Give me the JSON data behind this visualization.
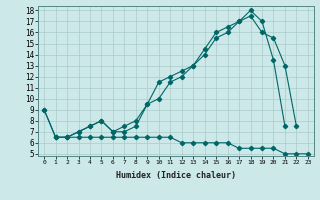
{
  "title": "",
  "xlabel": "Humidex (Indice chaleur)",
  "ylabel": "",
  "bg_color": "#cce8e8",
  "line_color": "#006666",
  "grid_color": "#aacccc",
  "xlim": [
    -0.5,
    23.5
  ],
  "ylim": [
    4.8,
    18.4
  ],
  "xticks": [
    0,
    1,
    2,
    3,
    4,
    5,
    6,
    7,
    8,
    9,
    10,
    11,
    12,
    13,
    14,
    15,
    16,
    17,
    18,
    19,
    20,
    21,
    22,
    23
  ],
  "yticks": [
    5,
    6,
    7,
    8,
    9,
    10,
    11,
    12,
    13,
    14,
    15,
    16,
    17,
    18
  ],
  "line1_x": [
    0,
    1,
    2,
    3,
    4,
    5,
    6,
    7,
    8,
    9,
    10,
    11,
    12,
    13,
    14,
    15,
    16,
    17,
    18,
    19,
    20,
    21
  ],
  "line1_y": [
    9,
    6.5,
    6.5,
    7,
    7.5,
    8,
    7,
    7,
    7.5,
    9.5,
    11.5,
    12,
    12.5,
    13,
    14.5,
    16,
    16.5,
    17,
    18,
    17,
    13.5,
    7.5
  ],
  "line2_x": [
    0,
    1,
    2,
    3,
    4,
    5,
    6,
    7,
    8,
    9,
    10,
    11,
    12,
    13,
    14,
    15,
    16,
    17,
    18,
    19,
    20,
    21,
    22
  ],
  "line2_y": [
    9,
    6.5,
    6.5,
    7,
    7.5,
    8,
    7,
    7.5,
    8,
    9.5,
    10,
    11.5,
    12,
    13,
    14,
    15.5,
    16,
    17,
    17.5,
    16,
    15.5,
    13,
    7.5
  ],
  "line3_x": [
    1,
    2,
    3,
    4,
    5,
    6,
    7,
    8,
    9,
    10,
    11,
    12,
    13,
    14,
    15,
    16,
    17,
    18,
    19,
    20,
    21,
    22,
    23
  ],
  "line3_y": [
    6.5,
    6.5,
    6.5,
    6.5,
    6.5,
    6.5,
    6.5,
    6.5,
    6.5,
    6.5,
    6.5,
    6,
    6,
    6,
    6,
    6,
    5.5,
    5.5,
    5.5,
    5.5,
    5,
    5,
    5
  ]
}
